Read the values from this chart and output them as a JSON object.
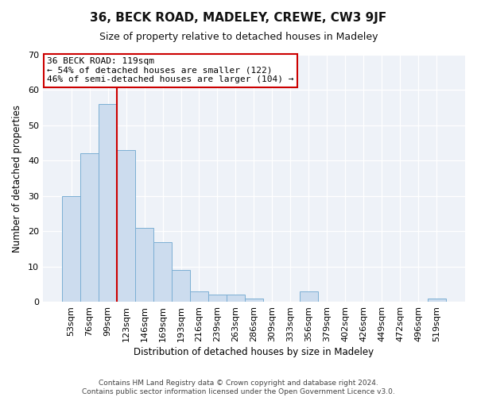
{
  "title": "36, BECK ROAD, MADELEY, CREWE, CW3 9JF",
  "subtitle": "Size of property relative to detached houses in Madeley",
  "xlabel": "Distribution of detached houses by size in Madeley",
  "ylabel": "Number of detached properties",
  "bar_labels": [
    "53sqm",
    "76sqm",
    "99sqm",
    "123sqm",
    "146sqm",
    "169sqm",
    "193sqm",
    "216sqm",
    "239sqm",
    "263sqm",
    "286sqm",
    "309sqm",
    "333sqm",
    "356sqm",
    "379sqm",
    "402sqm",
    "426sqm",
    "449sqm",
    "472sqm",
    "496sqm",
    "519sqm"
  ],
  "bar_values": [
    30,
    42,
    56,
    43,
    21,
    17,
    9,
    3,
    2,
    2,
    1,
    0,
    0,
    3,
    0,
    0,
    0,
    0,
    0,
    0,
    1
  ],
  "bar_color": "#ccdcee",
  "bar_edge_color": "#7bafd4",
  "vline_color": "#cc0000",
  "vline_index": 2.5,
  "ylim": [
    0,
    70
  ],
  "yticks": [
    0,
    10,
    20,
    30,
    40,
    50,
    60,
    70
  ],
  "annotation_text": "36 BECK ROAD: 119sqm\n← 54% of detached houses are smaller (122)\n46% of semi-detached houses are larger (104) →",
  "annotation_box_facecolor": "#ffffff",
  "annotation_box_edgecolor": "#cc0000",
  "footer_line1": "Contains HM Land Registry data © Crown copyright and database right 2024.",
  "footer_line2": "Contains public sector information licensed under the Open Government Licence v3.0.",
  "fig_facecolor": "#ffffff",
  "plot_facecolor": "#eef2f8",
  "grid_color": "#ffffff",
  "title_fontsize": 11,
  "subtitle_fontsize": 9,
  "axis_label_fontsize": 8.5,
  "tick_fontsize": 8,
  "annotation_fontsize": 8,
  "footer_fontsize": 6.5
}
